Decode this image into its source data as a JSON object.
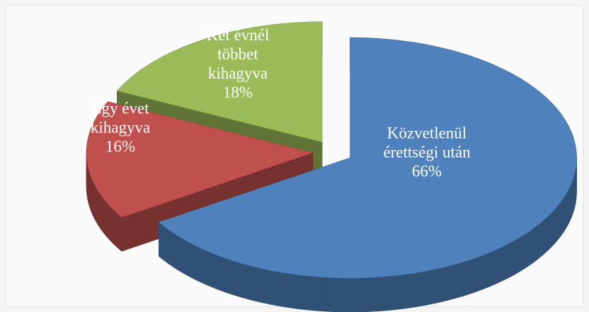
{
  "chart_data": {
    "type": "pie",
    "categories": [
      "Közvetlenül\nérettségi után",
      "Egy évet\nkihagyva",
      "Két évnél\ntöbbet\nkihagyva"
    ],
    "values": [
      66,
      16,
      18
    ],
    "value_labels": [
      "66%",
      "16%",
      "18%"
    ],
    "colors": [
      "#4f81bd",
      "#c0504d",
      "#9bbb59"
    ]
  }
}
